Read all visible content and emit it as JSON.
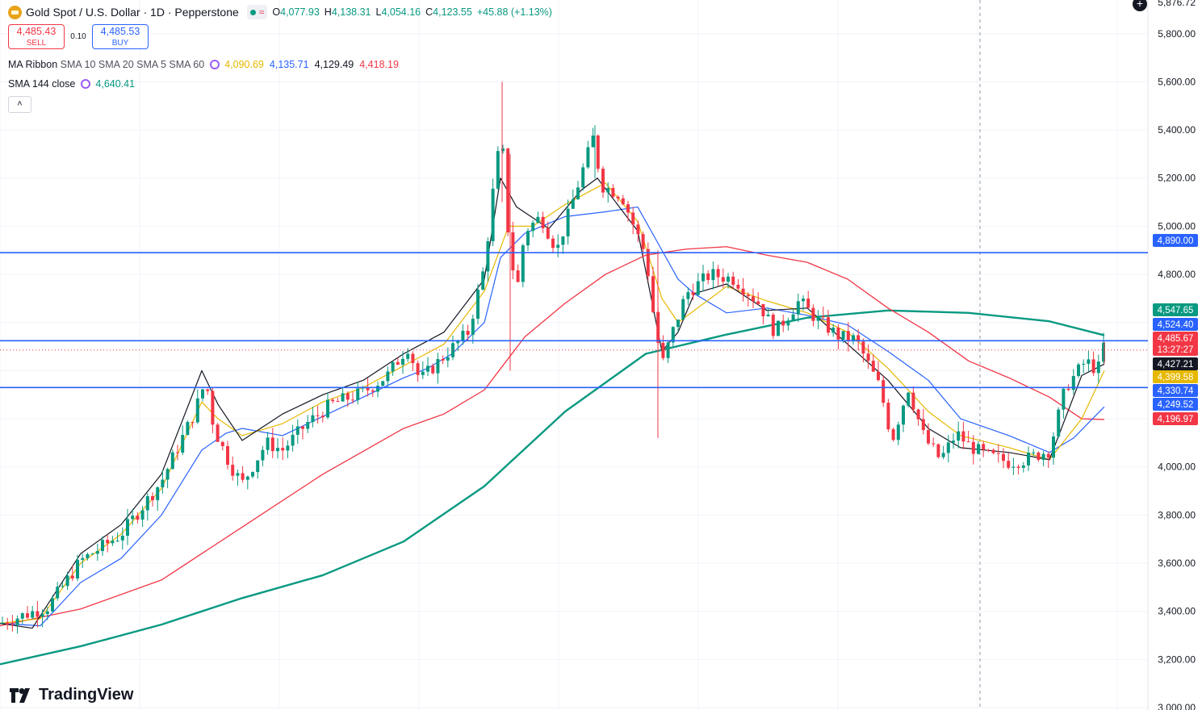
{
  "header": {
    "symbol_title": "Gold Spot / U.S. Dollar · 1D · Pepperstone",
    "open_label": "O",
    "open": "4,077.93",
    "high_label": "H",
    "high": "4,138.31",
    "low_label": "L",
    "low": "4,054.16",
    "close_label": "C",
    "close": "4,123.55",
    "change": "+45.88 (+1.13%)"
  },
  "trade": {
    "sell_price": "4,485.43",
    "sell_label": "SELL",
    "spread": "0.10",
    "buy_price": "4,485.53",
    "buy_label": "BUY"
  },
  "indicators": {
    "ribbon": {
      "name": "MA Ribbon",
      "params": "SMA 10 SMA 20 SMA 5 SMA 60",
      "values": [
        "4,090.69",
        "4,135.71",
        "4,129.49",
        "4,418.19"
      ],
      "colors": [
        "#e6b800",
        "#2962ff",
        "#131722",
        "#f23645"
      ]
    },
    "sma144": {
      "name": "SMA 144 close",
      "value": "4,640.41",
      "color": "#089981"
    }
  },
  "branding": {
    "logo_text": "TradingView"
  },
  "colors": {
    "up": "#089981",
    "down": "#f23645",
    "hline": "#2962ff",
    "grid": "#f0f3fa",
    "sma5": "#131722",
    "sma10": "#e6b800",
    "sma20": "#2962ff",
    "sma60": "#f23645",
    "sma144": "#089981"
  },
  "chart_data": {
    "type": "candlestick",
    "y_ticks": [
      3000,
      3200,
      3400,
      3600,
      3800,
      4000,
      4200,
      4400,
      4600,
      4800,
      5000,
      5200,
      5400,
      5600,
      5800
    ],
    "y_tick_labels": [
      "3,000.00",
      "3,200.00",
      "3,400.00",
      "3,600.00",
      "3,800.00",
      "4,000.00",
      "4,200.00",
      "4,400.00",
      "4,600.00",
      "4,800.00",
      "5,000.00",
      "5,200.00",
      "5,400.00",
      "5,600.00",
      "5,800.00"
    ],
    "ylim": [
      2990,
      5940
    ],
    "top_price_label": "5,876.72",
    "horizontal_lines": [
      4890,
      4524.4,
      4330
    ],
    "current_price": 4485.67,
    "price_badges": [
      {
        "label": "4,890.00",
        "value": 4890,
        "color": "#2962ff"
      },
      {
        "label": "4,547.65",
        "value": 4547.65,
        "color": "#089981"
      },
      {
        "label": "4,524.40",
        "value": 4524.4,
        "color": "#2962ff"
      },
      {
        "label": "4,485.67",
        "value": 4485.67,
        "color": "#f23645"
      },
      {
        "label": "13:27:27",
        "value": 4485.67,
        "color": "#f23645",
        "subtitle": true
      },
      {
        "label": "4,427.21",
        "value": 4427.21,
        "color": "#131722"
      },
      {
        "label": "4,399.58",
        "value": 4399.58,
        "color": "#e6b800"
      },
      {
        "label": "4,330.74",
        "value": 4330.74,
        "color": "#2962ff"
      },
      {
        "label": "4,249.52",
        "value": 4249.52,
        "color": "#2962ff"
      },
      {
        "label": "4,196.97",
        "value": 4196.97,
        "color": "#f23645"
      }
    ],
    "series": [
      {
        "name": "SMA 144 close",
        "values": [
          [
            0,
            3180
          ],
          [
            100,
            3255
          ],
          [
            200,
            3345
          ],
          [
            300,
            3455
          ],
          [
            400,
            3550
          ],
          [
            500,
            3690
          ],
          [
            600,
            3920
          ],
          [
            700,
            4230
          ],
          [
            800,
            4470
          ],
          [
            900,
            4550
          ],
          [
            1000,
            4620
          ],
          [
            1100,
            4650
          ],
          [
            1200,
            4640
          ],
          [
            1300,
            4605
          ],
          [
            1368,
            4547
          ]
        ]
      },
      {
        "name": "SMA 60",
        "values": [
          [
            0,
            3340
          ],
          [
            100,
            3410
          ],
          [
            200,
            3530
          ],
          [
            300,
            3750
          ],
          [
            400,
            3970
          ],
          [
            500,
            4160
          ],
          [
            550,
            4220
          ],
          [
            600,
            4320
          ],
          [
            650,
            4540
          ],
          [
            700,
            4680
          ],
          [
            750,
            4800
          ],
          [
            800,
            4880
          ],
          [
            850,
            4905
          ],
          [
            900,
            4915
          ],
          [
            950,
            4880
          ],
          [
            1000,
            4850
          ],
          [
            1050,
            4780
          ],
          [
            1100,
            4660
          ],
          [
            1150,
            4560
          ],
          [
            1200,
            4440
          ],
          [
            1250,
            4370
          ],
          [
            1300,
            4290
          ],
          [
            1340,
            4200
          ],
          [
            1368,
            4197
          ]
        ]
      },
      {
        "name": "SMA 20",
        "values": [
          [
            0,
            3350
          ],
          [
            50,
            3340
          ],
          [
            100,
            3520
          ],
          [
            150,
            3620
          ],
          [
            200,
            3800
          ],
          [
            250,
            4070
          ],
          [
            280,
            4140
          ],
          [
            300,
            4160
          ],
          [
            350,
            4130
          ],
          [
            400,
            4210
          ],
          [
            450,
            4290
          ],
          [
            500,
            4370
          ],
          [
            530,
            4410
          ],
          [
            560,
            4470
          ],
          [
            600,
            4600
          ],
          [
            620,
            4870
          ],
          [
            650,
            4970
          ],
          [
            700,
            5040
          ],
          [
            750,
            5060
          ],
          [
            790,
            5080
          ],
          [
            820,
            4900
          ],
          [
            840,
            4780
          ],
          [
            860,
            4720
          ],
          [
            900,
            4640
          ],
          [
            950,
            4660
          ],
          [
            1000,
            4630
          ],
          [
            1050,
            4590
          ],
          [
            1100,
            4480
          ],
          [
            1150,
            4360
          ],
          [
            1190,
            4200
          ],
          [
            1250,
            4130
          ],
          [
            1300,
            4060
          ],
          [
            1330,
            4120
          ],
          [
            1368,
            4250
          ]
        ]
      },
      {
        "name": "SMA 10",
        "values": [
          [
            0,
            3350
          ],
          [
            50,
            3370
          ],
          [
            100,
            3600
          ],
          [
            150,
            3720
          ],
          [
            200,
            3910
          ],
          [
            250,
            4270
          ],
          [
            270,
            4200
          ],
          [
            300,
            4130
          ],
          [
            350,
            4180
          ],
          [
            400,
            4270
          ],
          [
            450,
            4330
          ],
          [
            500,
            4420
          ],
          [
            550,
            4510
          ],
          [
            600,
            4730
          ],
          [
            630,
            5000
          ],
          [
            660,
            5000
          ],
          [
            700,
            5090
          ],
          [
            750,
            5180
          ],
          [
            790,
            5020
          ],
          [
            820,
            4700
          ],
          [
            840,
            4600
          ],
          [
            860,
            4650
          ],
          [
            900,
            4750
          ],
          [
            950,
            4690
          ],
          [
            1000,
            4640
          ],
          [
            1050,
            4560
          ],
          [
            1100,
            4410
          ],
          [
            1150,
            4230
          ],
          [
            1190,
            4130
          ],
          [
            1250,
            4080
          ],
          [
            1300,
            4030
          ],
          [
            1340,
            4200
          ],
          [
            1368,
            4400
          ]
        ]
      },
      {
        "name": "SMA 5",
        "values": [
          [
            0,
            3350
          ],
          [
            40,
            3330
          ],
          [
            100,
            3640
          ],
          [
            150,
            3760
          ],
          [
            200,
            3970
          ],
          [
            250,
            4400
          ],
          [
            270,
            4260
          ],
          [
            300,
            4110
          ],
          [
            350,
            4220
          ],
          [
            400,
            4300
          ],
          [
            450,
            4360
          ],
          [
            500,
            4470
          ],
          [
            550,
            4560
          ],
          [
            600,
            4780
          ],
          [
            620,
            5200
          ],
          [
            640,
            5080
          ],
          [
            680,
            4990
          ],
          [
            720,
            5150
          ],
          [
            740,
            5200
          ],
          [
            790,
            4980
          ],
          [
            820,
            4480
          ],
          [
            840,
            4560
          ],
          [
            860,
            4720
          ],
          [
            900,
            4760
          ],
          [
            950,
            4650
          ],
          [
            1000,
            4660
          ],
          [
            1050,
            4510
          ],
          [
            1100,
            4360
          ],
          [
            1150,
            4160
          ],
          [
            1190,
            4080
          ],
          [
            1250,
            4060
          ],
          [
            1300,
            4030
          ],
          [
            1340,
            4380
          ],
          [
            1368,
            4427
          ]
        ]
      }
    ],
    "ohlc_anchors": [
      [
        0,
        3350,
        3360,
        3320,
        3340
      ],
      [
        60,
        3420
      ],
      [
        100,
        3610
      ],
      [
        150,
        3720
      ],
      [
        200,
        3940
      ],
      [
        240,
        4220
      ],
      [
        255,
        4360
      ],
      [
        265,
        4160
      ],
      [
        285,
        4010
      ],
      [
        300,
        3930
      ],
      [
        330,
        4100
      ],
      [
        350,
        4070
      ],
      [
        380,
        4180
      ],
      [
        410,
        4260
      ],
      [
        450,
        4310
      ],
      [
        480,
        4380
      ],
      [
        505,
        4500
      ],
      [
        520,
        4360
      ],
      [
        550,
        4460
      ],
      [
        580,
        4560
      ],
      [
        600,
        4830
      ],
      [
        615,
        5270
      ],
      [
        622,
        5350
      ],
      [
        630,
        4950
      ],
      [
        640,
        4720
      ],
      [
        650,
        4980
      ],
      [
        670,
        5040
      ],
      [
        690,
        4900
      ],
      [
        710,
        5110
      ],
      [
        735,
        5370
      ],
      [
        745,
        5170
      ],
      [
        770,
        5130
      ],
      [
        790,
        4960
      ],
      [
        800,
        4880
      ],
      [
        810,
        4620
      ],
      [
        820,
        4420
      ],
      [
        830,
        4530
      ],
      [
        850,
        4720
      ],
      [
        880,
        4800
      ],
      [
        910,
        4780
      ],
      [
        940,
        4680
      ],
      [
        960,
        4560
      ],
      [
        990,
        4690
      ],
      [
        1010,
        4620
      ],
      [
        1040,
        4540
      ],
      [
        1060,
        4530
      ],
      [
        1090,
        4330
      ],
      [
        1105,
        4110
      ],
      [
        1125,
        4330
      ],
      [
        1145,
        4120
      ],
      [
        1165,
        4030
      ],
      [
        1185,
        4140
      ],
      [
        1200,
        4090
      ],
      [
        1220,
        4050
      ],
      [
        1250,
        4020
      ],
      [
        1270,
        4030
      ],
      [
        1300,
        4070
      ],
      [
        1320,
        4330
      ],
      [
        1345,
        4440
      ],
      [
        1360,
        4400
      ],
      [
        1368,
        4520
      ]
    ]
  }
}
